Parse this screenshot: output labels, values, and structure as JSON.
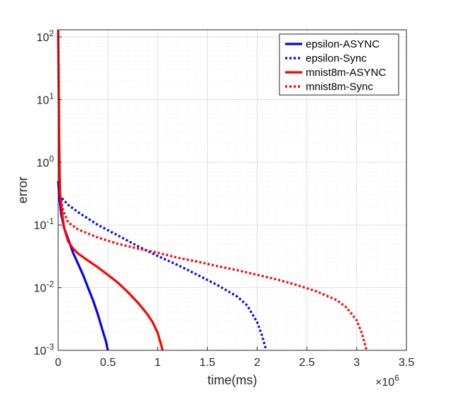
{
  "chart_data": {
    "type": "line",
    "xlabel": "time(ms)",
    "ylabel": "error",
    "x_scale": "linear",
    "x_multiplier_label": "×10^6",
    "x_multiplier": {
      "base": "×10",
      "exp": "6"
    },
    "xlim": [
      0,
      3.5
    ],
    "xticks": [
      "0",
      "0.5",
      "1",
      "1.5",
      "2",
      "2.5",
      "3",
      "3.5"
    ],
    "y_scale": "log",
    "ylim": [
      0.001,
      130
    ],
    "yticks": [
      {
        "base": "10",
        "exp": "2",
        "value": 100
      },
      {
        "base": "10",
        "exp": "1",
        "value": 10
      },
      {
        "base": "10",
        "exp": "0",
        "value": 1
      },
      {
        "base": "10",
        "exp": "-1",
        "value": 0.1
      },
      {
        "base": "10",
        "exp": "-2",
        "value": 0.01
      },
      {
        "base": "10",
        "exp": "-3",
        "value": 0.001
      }
    ],
    "grid": true,
    "legend_position": "top-right",
    "series": [
      {
        "name": "epsilon-ASYNC",
        "color": "#0000ff",
        "style": "solid",
        "points": [
          [
            0,
            0.5
          ],
          [
            0.01,
            0.3
          ],
          [
            0.03,
            0.15
          ],
          [
            0.06,
            0.09
          ],
          [
            0.1,
            0.06
          ],
          [
            0.15,
            0.036
          ],
          [
            0.2,
            0.024
          ],
          [
            0.25,
            0.016
          ],
          [
            0.3,
            0.01
          ],
          [
            0.35,
            0.0063
          ],
          [
            0.4,
            0.0037
          ],
          [
            0.45,
            0.002
          ],
          [
            0.48,
            0.0014
          ],
          [
            0.5,
            0.001
          ]
        ]
      },
      {
        "name": "epsilon-Sync",
        "color": "#0000ff",
        "style": "dotted",
        "points": [
          [
            0.01,
            0.3
          ],
          [
            0.1,
            0.21
          ],
          [
            0.2,
            0.16
          ],
          [
            0.4,
            0.1
          ],
          [
            0.6,
            0.068
          ],
          [
            0.8,
            0.046
          ],
          [
            1.0,
            0.032
          ],
          [
            1.2,
            0.023
          ],
          [
            1.4,
            0.016
          ],
          [
            1.6,
            0.011
          ],
          [
            1.8,
            0.0072
          ],
          [
            1.9,
            0.0052
          ],
          [
            2.0,
            0.0028
          ],
          [
            2.05,
            0.0017
          ],
          [
            2.09,
            0.001
          ]
        ]
      },
      {
        "name": "mnist8m-ASYNC",
        "color": "#ff0000",
        "style": "solid",
        "points": [
          [
            0,
            130
          ],
          [
            0.005,
            20
          ],
          [
            0.01,
            2.5
          ],
          [
            0.015,
            0.6
          ],
          [
            0.02,
            0.3
          ],
          [
            0.04,
            0.15
          ],
          [
            0.06,
            0.09
          ],
          [
            0.1,
            0.055
          ],
          [
            0.15,
            0.042
          ],
          [
            0.2,
            0.035
          ],
          [
            0.3,
            0.027
          ],
          [
            0.4,
            0.021
          ],
          [
            0.5,
            0.016
          ],
          [
            0.6,
            0.012
          ],
          [
            0.7,
            0.0085
          ],
          [
            0.8,
            0.0058
          ],
          [
            0.9,
            0.0037
          ],
          [
            0.95,
            0.0028
          ],
          [
            1.0,
            0.0019
          ],
          [
            1.03,
            0.0013
          ],
          [
            1.05,
            0.001
          ]
        ]
      },
      {
        "name": "mnist8m-Sync",
        "color": "#ff0000",
        "style": "dotted",
        "points": [
          [
            0,
            130
          ],
          [
            0.005,
            30
          ],
          [
            0.01,
            3
          ],
          [
            0.015,
            0.6
          ],
          [
            0.02,
            0.3
          ],
          [
            0.05,
            0.17
          ],
          [
            0.1,
            0.11
          ],
          [
            0.2,
            0.085
          ],
          [
            0.4,
            0.063
          ],
          [
            0.6,
            0.05
          ],
          [
            0.8,
            0.042
          ],
          [
            1.0,
            0.036
          ],
          [
            1.2,
            0.03
          ],
          [
            1.4,
            0.026
          ],
          [
            1.6,
            0.022
          ],
          [
            1.8,
            0.019
          ],
          [
            2.0,
            0.016
          ],
          [
            2.2,
            0.0135
          ],
          [
            2.4,
            0.011
          ],
          [
            2.6,
            0.0087
          ],
          [
            2.8,
            0.0063
          ],
          [
            2.9,
            0.0048
          ],
          [
            3.0,
            0.003
          ],
          [
            3.05,
            0.0019
          ],
          [
            3.1,
            0.001
          ]
        ]
      }
    ]
  }
}
